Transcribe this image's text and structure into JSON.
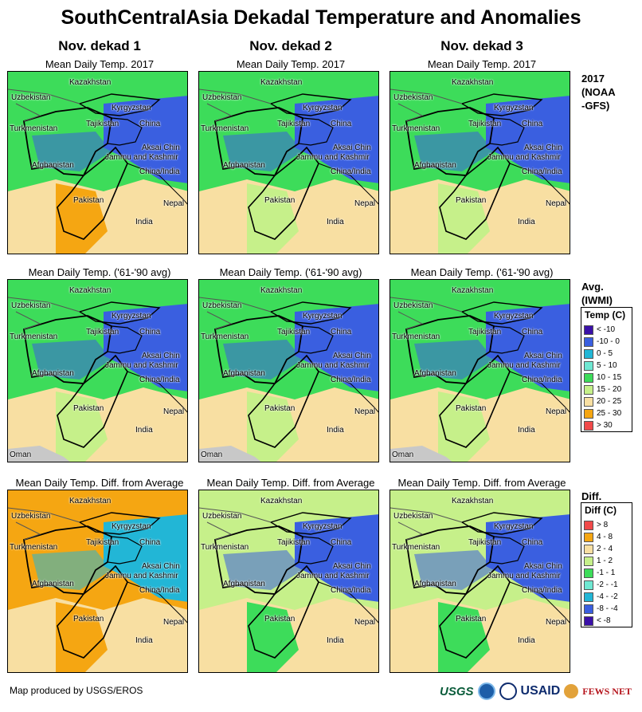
{
  "title": "SouthCentralAsia Dekadal Temperature and Anomalies",
  "columns": [
    "Nov. dekad 1",
    "Nov. dekad 2",
    "Nov. dekad 3"
  ],
  "row_titles": [
    "Mean Daily Temp. 2017",
    "Mean Daily Temp. ('61-'90 avg)",
    "Mean Daily Temp. Diff. from Average"
  ],
  "row_side_labels": [
    "2017\n(NOAA\n-GFS)",
    "Avg.\n(IWMI)",
    "Diff."
  ],
  "map_labels": {
    "kazakhstan": "Kazakhstan",
    "uzbekistan": "Uzbekistan",
    "kyrgyzstan": "Kyrgyzstan",
    "turkmenistan": "Turkmenistan",
    "tajikistan": "Tajikistan",
    "china": "China",
    "aksai_chin": "Aksai Chin",
    "jammu_kashmir": "Jammu and Kashmir",
    "afghanistan": "Afghanistan",
    "china_india": "China/India",
    "pakistan": "Pakistan",
    "nepal": "Nepal",
    "india": "India",
    "oman": "Oman"
  },
  "temp_legend": {
    "title": "Temp (C)",
    "items": [
      {
        "label": "< -10",
        "color": "#3a10a8"
      },
      {
        "label": "-10 - 0",
        "color": "#3a5fe0"
      },
      {
        "label": "0 - 5",
        "color": "#22b6d6"
      },
      {
        "label": "5 - 10",
        "color": "#6fe8d2"
      },
      {
        "label": "10 - 15",
        "color": "#3ddc5a"
      },
      {
        "label": "15 - 20",
        "color": "#c6f08a"
      },
      {
        "label": "20 - 25",
        "color": "#f8dfa2"
      },
      {
        "label": "25 - 30",
        "color": "#f5a612"
      },
      {
        "label": "> 30",
        "color": "#f04a4a"
      }
    ]
  },
  "diff_legend": {
    "title": "Diff (C)",
    "items": [
      {
        "label": "> 8",
        "color": "#f04a4a"
      },
      {
        "label": "4 - 8",
        "color": "#f5a612"
      },
      {
        "label": "2 - 4",
        "color": "#f8dfa2"
      },
      {
        "label": "1 - 2",
        "color": "#c6f08a"
      },
      {
        "label": "-1 - 1",
        "color": "#3ddc5a"
      },
      {
        "label": "-2 - -1",
        "color": "#6fe8d2"
      },
      {
        "label": "-4 - -2",
        "color": "#22b6d6"
      },
      {
        "label": "-8 - -4",
        "color": "#3a5fe0"
      },
      {
        "label": "< -8",
        "color": "#3a10a8"
      }
    ]
  },
  "credit": "Map produced by USGS/EROS",
  "logos": {
    "usgs": "USGS",
    "usaid": "USAID",
    "fews": "FEWS NET"
  },
  "map_palettes": {
    "r0": [
      "#3ddc5a",
      "#f8dfa2",
      "#f5a612",
      "#3a5fe0"
    ],
    "r1": [
      "#3ddc5a",
      "#f8dfa2",
      "#c6f08a",
      "#3a5fe0"
    ],
    "r2a": [
      "#f5a612",
      "#f8dfa2",
      "#f5a612",
      "#22b6d6"
    ],
    "r2b": [
      "#c6f08a",
      "#f8dfa2",
      "#3ddc5a",
      "#3a5fe0"
    ]
  }
}
